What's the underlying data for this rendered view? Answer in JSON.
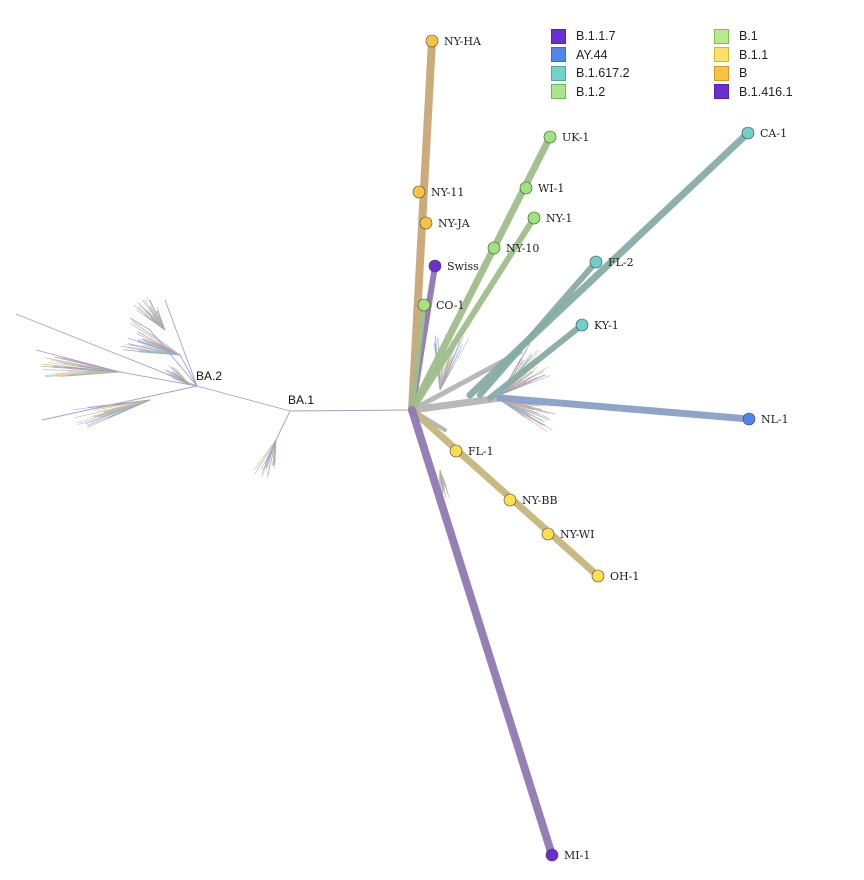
{
  "colors": {
    "B.1.1.7": "#6a2fd0",
    "AY.44": "#4f86ee",
    "B.1.617.2": "#6ed0c8",
    "B.1.2": "#9ee47c",
    "B.1": "#a7e47e",
    "B.1.1": "#f9df4e",
    "B": "#f8c243",
    "B.1.416.1": "#6a2fd0",
    "branch_purple": "#8f7ab4",
    "branch_tan": "#c9a772",
    "branch_green": "#9fbe8c",
    "branch_teal": "#87aca8",
    "branch_blue": "#8aa0c8",
    "branch_olive": "#c7b77d",
    "branch_grey": "#b8b8b8"
  },
  "legend": {
    "col1": [
      {
        "label": "B.1.1.7",
        "fill": "#6a2fd0",
        "border": "#5523a8"
      },
      {
        "label": "AY.44",
        "fill": "#4f86ee",
        "border": "#3a6cc8"
      },
      {
        "label": "B.1.617.2",
        "fill": "#72d2ca",
        "border": "#4aa8a0"
      },
      {
        "label": "B.1.2",
        "fill": "#a8e68a",
        "border": "#6cb84a"
      }
    ],
    "col2": [
      {
        "label": "B.1",
        "fill": "#b6ea8c",
        "border": "#7cc04e"
      },
      {
        "label": "B.1.1",
        "fill": "#fae26a",
        "border": "#d8b52a"
      },
      {
        "label": "B",
        "fill": "#f8c243",
        "border": "#d89a1e"
      },
      {
        "label": "B.1.416.1",
        "fill": "#6a2fd0",
        "border": "#5523a8"
      }
    ]
  },
  "clade_labels": {
    "ba1": "BA.1",
    "ba2": "BA.2"
  },
  "tips": [
    {
      "name": "NY-HA",
      "lineage": "B"
    },
    {
      "name": "NY-11",
      "lineage": "B"
    },
    {
      "name": "NY-JA",
      "lineage": "B"
    },
    {
      "name": "Swiss",
      "lineage": "B.1.416.1"
    },
    {
      "name": "CO-1",
      "lineage": "B.1"
    },
    {
      "name": "UK-1",
      "lineage": "B.1.2"
    },
    {
      "name": "WI-1",
      "lineage": "B.1.2"
    },
    {
      "name": "NY-1",
      "lineage": "B.1.2"
    },
    {
      "name": "NY-10",
      "lineage": "B.1.2"
    },
    {
      "name": "CA-1",
      "lineage": "B.1.617.2"
    },
    {
      "name": "FL-2",
      "lineage": "B.1.617.2"
    },
    {
      "name": "KY-1",
      "lineage": "B.1.617.2"
    },
    {
      "name": "NL-1",
      "lineage": "AY.44"
    },
    {
      "name": "FL-1",
      "lineage": "B.1.1"
    },
    {
      "name": "NY-BB",
      "lineage": "B.1.1"
    },
    {
      "name": "NY-WI",
      "lineage": "B.1.1"
    },
    {
      "name": "OH-1",
      "lineage": "B.1.1"
    },
    {
      "name": "MI-1",
      "lineage": "B.1.1.7"
    }
  ]
}
